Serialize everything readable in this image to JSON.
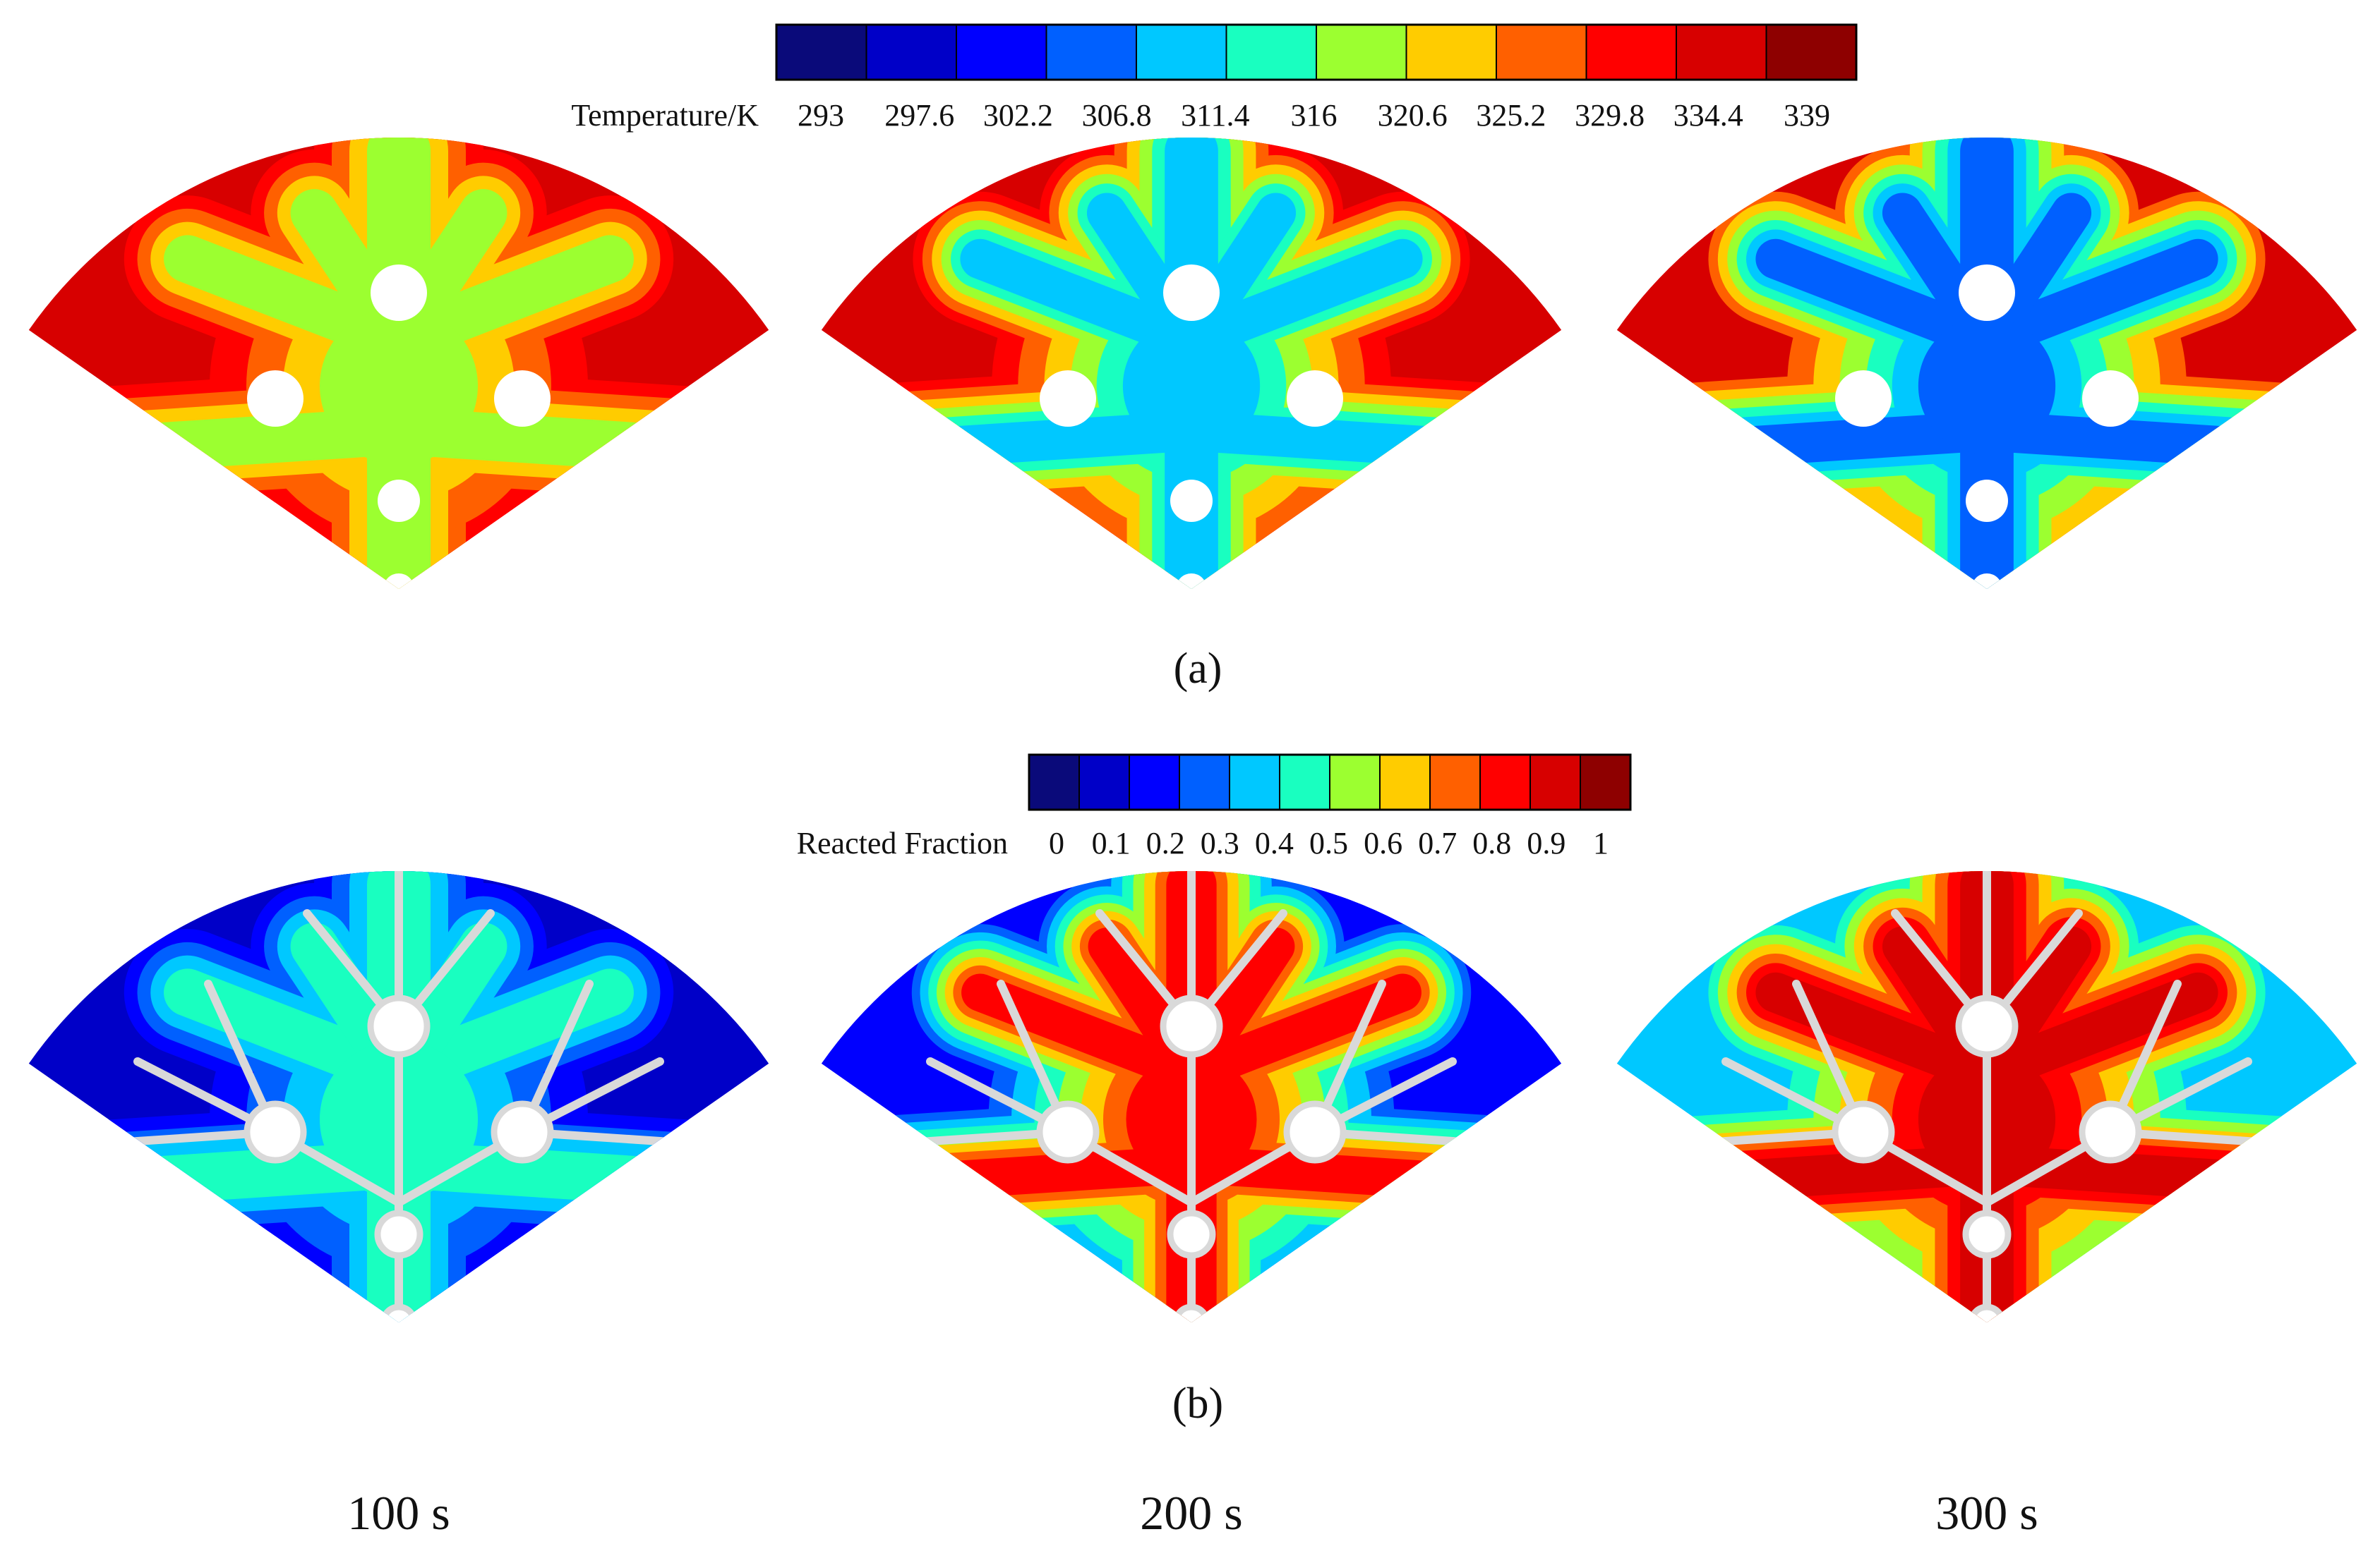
{
  "temperature_legend": {
    "title": "Temperature/K",
    "ticks": [
      "293",
      "297.6",
      "302.2",
      "306.8",
      "311.4",
      "316",
      "320.6",
      "325.2",
      "329.8",
      "334.4",
      "339"
    ]
  },
  "fraction_legend": {
    "title": "Reacted Fraction",
    "ticks": [
      "0",
      "0.1",
      "0.2",
      "0.3",
      "0.4",
      "0.5",
      "0.6",
      "0.7",
      "0.8",
      "0.9",
      "1"
    ]
  },
  "palette": [
    "#0a0a7a",
    "#0000c8",
    "#0000ff",
    "#0060ff",
    "#00c8ff",
    "#19ffc0",
    "#9cff30",
    "#ffcc00",
    "#ff6000",
    "#ff0000",
    "#d70000",
    "#8e0000"
  ],
  "subfigure_labels": {
    "a": "(a)",
    "b": "(b)"
  },
  "time_labels": [
    "100 s",
    "200 s",
    "300 s"
  ],
  "panels": {
    "temperature": [
      {
        "time": "100 s",
        "levels": [
          10,
          9,
          8,
          7,
          6
        ]
      },
      {
        "time": "200 s",
        "levels": [
          10,
          9,
          8,
          7,
          6,
          5,
          4
        ]
      },
      {
        "time": "300 s",
        "levels": [
          10,
          8,
          7,
          6,
          5,
          4,
          3
        ]
      }
    ],
    "fraction": [
      {
        "time": "100 s",
        "levels": [
          1,
          2,
          3,
          4,
          5
        ]
      },
      {
        "time": "200 s",
        "levels": [
          2,
          3,
          4,
          5,
          6,
          7,
          8,
          9
        ]
      },
      {
        "time": "300 s",
        "levels": [
          4,
          5,
          6,
          7,
          8,
          9,
          10
        ]
      }
    ]
  },
  "fin_color": "#d9d9d9"
}
